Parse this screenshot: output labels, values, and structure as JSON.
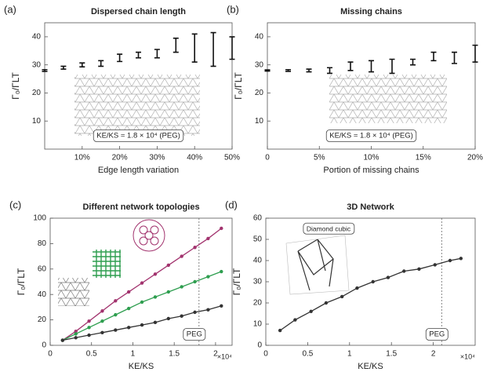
{
  "chart_data": [
    {
      "type": "errorbar",
      "panel_label": "(a)",
      "title": "Dispersed chain length",
      "x_label": "Edge length variation",
      "y_label": "Γ₀/ΓLT",
      "annotation": "KE/KS = 1.8 × 10⁴ (PEG)",
      "x": [
        0,
        5,
        10,
        15,
        20,
        25,
        30,
        35,
        40,
        45,
        50
      ],
      "series": [
        {
          "color": "#111111",
          "values": [
            28,
            29,
            30,
            30.5,
            32.5,
            33.5,
            34,
            37,
            36,
            35.5,
            36
          ],
          "errors": [
            0.3,
            0.5,
            0.7,
            1,
            1.3,
            1,
            1.5,
            2.5,
            5,
            6,
            4
          ]
        }
      ],
      "xlim": [
        0,
        50
      ],
      "ylim": [
        0,
        45
      ],
      "xticks": [
        {
          "value": 10,
          "label": "10%"
        },
        {
          "value": 20,
          "label": "20%"
        },
        {
          "value": 30,
          "label": "30%"
        },
        {
          "value": 40,
          "label": "40%"
        },
        {
          "value": 50,
          "label": "50%"
        }
      ],
      "yticks": [
        10,
        20,
        30,
        40
      ]
    },
    {
      "type": "errorbar",
      "panel_label": "(b)",
      "title": "Missing chains",
      "x_label": "Portion of missing chains",
      "y_label": "Γ₀/ΓLT",
      "annotation": "KE/KS = 1.8 × 10⁴ (PEG)",
      "x": [
        0,
        2,
        4,
        6,
        8,
        10,
        12,
        14,
        16,
        18,
        20
      ],
      "series": [
        {
          "color": "#111111",
          "values": [
            28,
            28,
            28,
            28,
            29.5,
            29.5,
            29.5,
            31,
            33,
            32.5,
            34
          ],
          "errors": [
            0.2,
            0.3,
            0.5,
            1,
            1.5,
            2,
            2.5,
            1,
            1.5,
            2,
            3
          ]
        }
      ],
      "xlim": [
        0,
        20
      ],
      "ylim": [
        0,
        45
      ],
      "xticks": [
        0,
        {
          "value": 5,
          "label": "5%"
        },
        {
          "value": 10,
          "label": "10%"
        },
        {
          "value": 15,
          "label": "15%"
        },
        {
          "value": 20,
          "label": "20%"
        }
      ],
      "yticks": [
        10,
        20,
        30,
        40
      ]
    },
    {
      "type": "line",
      "panel_label": "(c)",
      "title": "Different network topologies",
      "x_label": "KE/KS",
      "y_label": "Γ₀/ΓLT",
      "x_multiplier": "×10⁴",
      "annotation": "PEG",
      "vline": 1.8,
      "x": [
        0.15,
        0.31,
        0.47,
        0.63,
        0.79,
        0.95,
        1.11,
        1.27,
        1.43,
        1.59,
        1.75,
        1.91,
        2.07
      ],
      "series": [
        {
          "color": "#a2336e",
          "values": [
            4,
            11,
            19,
            27,
            35,
            42,
            49,
            56,
            63,
            70,
            77,
            84,
            92
          ]
        },
        {
          "color": "#2e9e4f",
          "values": [
            4,
            9,
            14,
            19,
            24,
            29,
            34,
            38,
            42,
            46,
            50,
            54,
            58
          ]
        },
        {
          "color": "#333333",
          "values": [
            4,
            6,
            8,
            10,
            12,
            14,
            16,
            18,
            21,
            23,
            26,
            28,
            31
          ]
        }
      ],
      "xlim": [
        0,
        2.2
      ],
      "ylim": [
        0,
        100
      ],
      "xticks": [
        0,
        0.5,
        1,
        1.5,
        2
      ],
      "yticks": [
        0,
        20,
        40,
        60,
        80,
        100
      ]
    },
    {
      "type": "line",
      "panel_label": "(d)",
      "title": "3D Network",
      "x_label": "KE/KS",
      "y_label": "Γ₀/ΓLT",
      "x_multiplier": "×10⁴",
      "annotation": "PEG",
      "vline": 2.1,
      "inset_label": "Diamond cubic",
      "x": [
        0.17,
        0.35,
        0.54,
        0.72,
        0.91,
        1.09,
        1.28,
        1.46,
        1.65,
        1.83,
        2.02,
        2.2,
        2.33
      ],
      "series": [
        {
          "color": "#333333",
          "values": [
            7,
            12,
            16,
            20,
            23,
            27,
            30,
            32,
            35,
            36,
            38,
            40,
            41
          ]
        }
      ],
      "xlim": [
        0,
        2.5
      ],
      "ylim": [
        0,
        60
      ],
      "xticks": [
        0,
        0.5,
        1,
        1.5,
        2
      ],
      "yticks": [
        0,
        10,
        20,
        30,
        40,
        50,
        60
      ]
    }
  ]
}
